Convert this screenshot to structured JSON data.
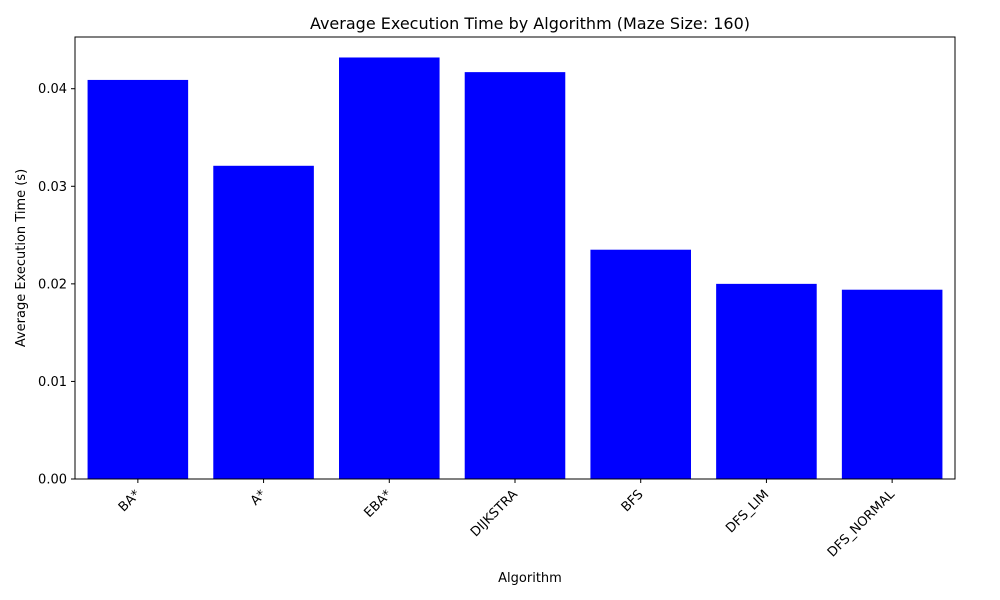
{
  "chart_data": {
    "type": "bar",
    "title": "Average Execution Time by Algorithm (Maze Size: 160)",
    "xlabel": "Algorithm",
    "ylabel": "Average Execution Time (s)",
    "categories": [
      "BA*",
      "A*",
      "EBA*",
      "DIJKSTRA",
      "BFS",
      "DFS_LIM",
      "DFS_NORMAL"
    ],
    "values": [
      0.0409,
      0.0321,
      0.0432,
      0.0417,
      0.0235,
      0.02,
      0.0194
    ],
    "ylim": [
      0,
      0.0453
    ],
    "yticks": [
      0.0,
      0.01,
      0.02,
      0.03,
      0.04
    ],
    "ytick_labels": [
      "0.00",
      "0.01",
      "0.02",
      "0.03",
      "0.04"
    ],
    "bar_color": "#0000ff",
    "grid": false,
    "legend": "none"
  }
}
